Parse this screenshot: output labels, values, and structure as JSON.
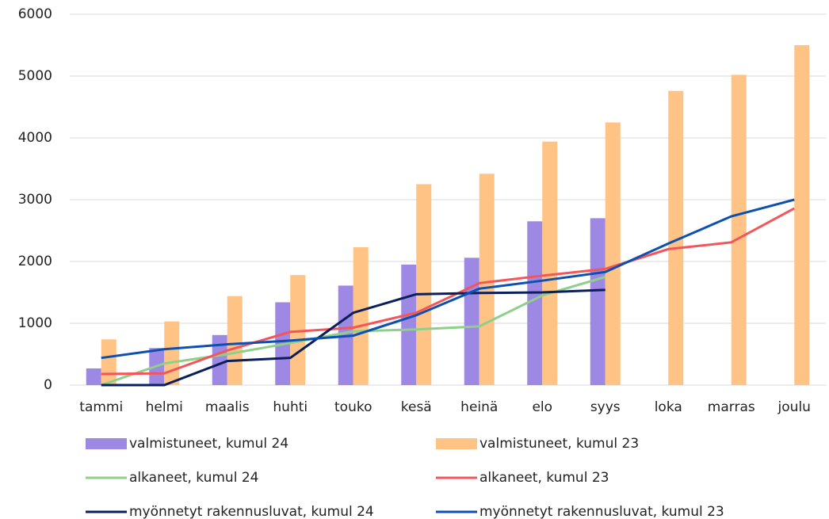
{
  "chart_data": {
    "type": "bar-line",
    "categories": [
      "tammi",
      "helmi",
      "maalis",
      "huhti",
      "touko",
      "kesä",
      "heinä",
      "elo",
      "syys",
      "loka",
      "marras",
      "joulu"
    ],
    "series": [
      {
        "name": "valmistuneet, kumul 24",
        "kind": "bar",
        "color": "#9d88e4",
        "values": [
          270,
          600,
          810,
          1340,
          1610,
          1950,
          2060,
          2650,
          2700,
          null,
          null,
          null
        ]
      },
      {
        "name": "valmistuneet, kumul 23",
        "kind": "bar",
        "color": "#ffc385",
        "values": [
          740,
          1030,
          1440,
          1780,
          2230,
          3250,
          3420,
          3940,
          4250,
          4760,
          5020,
          5500
        ]
      },
      {
        "name": "alkaneet, kumul 24",
        "kind": "line",
        "color": "#8ecf8a",
        "values": [
          0,
          350,
          500,
          680,
          870,
          900,
          950,
          1450,
          1750,
          null,
          null,
          null
        ]
      },
      {
        "name": "alkaneet, kumul 23",
        "kind": "line",
        "color": "#f45559",
        "values": [
          180,
          190,
          560,
          860,
          930,
          1170,
          1650,
          1770,
          1880,
          2200,
          2310,
          2860
        ]
      },
      {
        "name": "myönnetyt rakennusluvat, kumul 24",
        "kind": "line",
        "color": "#0b1f5c",
        "values": [
          0,
          0,
          390,
          440,
          1170,
          1470,
          1490,
          1500,
          1540,
          null,
          null,
          null
        ]
      },
      {
        "name": "myönnetyt rakennusluvat, kumul 23",
        "kind": "line",
        "color": "#0d50b0",
        "values": [
          440,
          580,
          660,
          720,
          800,
          1130,
          1560,
          1690,
          1830,
          2290,
          2730,
          3000
        ]
      }
    ],
    "ylim": [
      0,
      6000
    ],
    "yticks": [
      0,
      1000,
      2000,
      3000,
      4000,
      5000,
      6000
    ],
    "grid": true
  }
}
